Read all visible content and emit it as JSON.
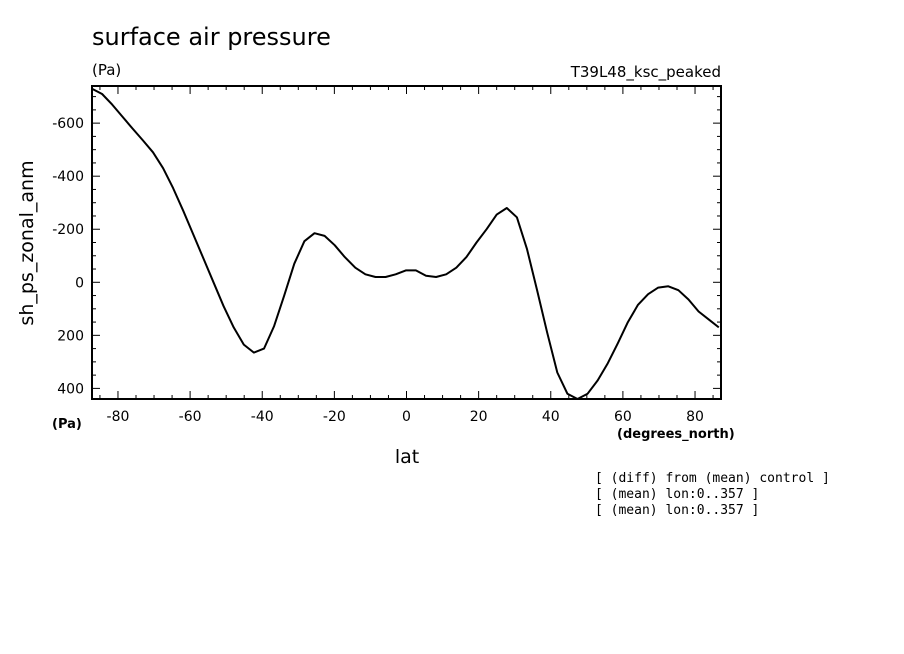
{
  "chart_data": {
    "type": "line",
    "title": "surface air pressure",
    "units": "(Pa)",
    "experiment": "T39L48_ksc_peaked",
    "xlabel": "lat",
    "xunits": "(degrees_north)",
    "ylabel": "sh_ps_zonal_anm",
    "yunits": "(Pa)",
    "xlim": [
      -87.2,
      87.2
    ],
    "ylim": [
      -740,
      440
    ],
    "y_inverted": true,
    "xticks": [
      -80,
      -60,
      -40,
      -20,
      0,
      20,
      40,
      60,
      80
    ],
    "xtick_labels": [
      "-80",
      "-60",
      "-40",
      "-20",
      "0",
      "20",
      "40",
      "60",
      "80"
    ],
    "yticks": [
      -600,
      -400,
      -200,
      0,
      200,
      400
    ],
    "ytick_labels": [
      "-600",
      "-400",
      "-200",
      "0",
      "200",
      "400"
    ],
    "grid": false,
    "series": [
      {
        "x": [
          -87.2,
          -84.4,
          -81.6,
          -78.8,
          -76.0,
          -73.1,
          -70.3,
          -67.5,
          -64.7,
          -61.9,
          -59.1,
          -56.3,
          -53.5,
          -50.7,
          -47.9,
          -45.1,
          -42.3,
          -39.5,
          -36.7,
          -33.9,
          -31.1,
          -28.3,
          -25.5,
          -22.7,
          -19.9,
          -17.1,
          -14.2,
          -11.4,
          -8.6,
          -5.8,
          -3.0,
          -0.2,
          2.6,
          5.4,
          8.2,
          11.0,
          13.8,
          16.6,
          19.4,
          22.2,
          25.0,
          27.8,
          30.6,
          33.4,
          36.2,
          39.0,
          41.8,
          44.6,
          47.4,
          50.2,
          53.0,
          55.8,
          58.6,
          61.4,
          64.2,
          67.0,
          69.8,
          72.6,
          75.4,
          78.2,
          81.0,
          83.8,
          86.6
        ],
        "y": [
          -730,
          -710,
          -670,
          -625,
          -580,
          -535,
          -490,
          -430,
          -355,
          -270,
          -180,
          -90,
          0,
          90,
          170,
          235,
          265,
          250,
          165,
          50,
          -70,
          -155,
          -185,
          -175,
          -140,
          -95,
          -55,
          -30,
          -20,
          -20,
          -30,
          -45,
          -45,
          -25,
          -20,
          -30,
          -55,
          -95,
          -150,
          -200,
          -255,
          -280,
          -245,
          -125,
          30,
          190,
          340,
          420,
          440,
          420,
          370,
          305,
          230,
          150,
          85,
          45,
          20,
          15,
          30,
          65,
          110,
          140,
          170
        ]
      }
    ]
  },
  "footnotes": [
    "[ (diff) from (mean) control ]",
    "[ (mean) lon:0..357 ]",
    "[ (mean) lon:0..357 ]"
  ]
}
